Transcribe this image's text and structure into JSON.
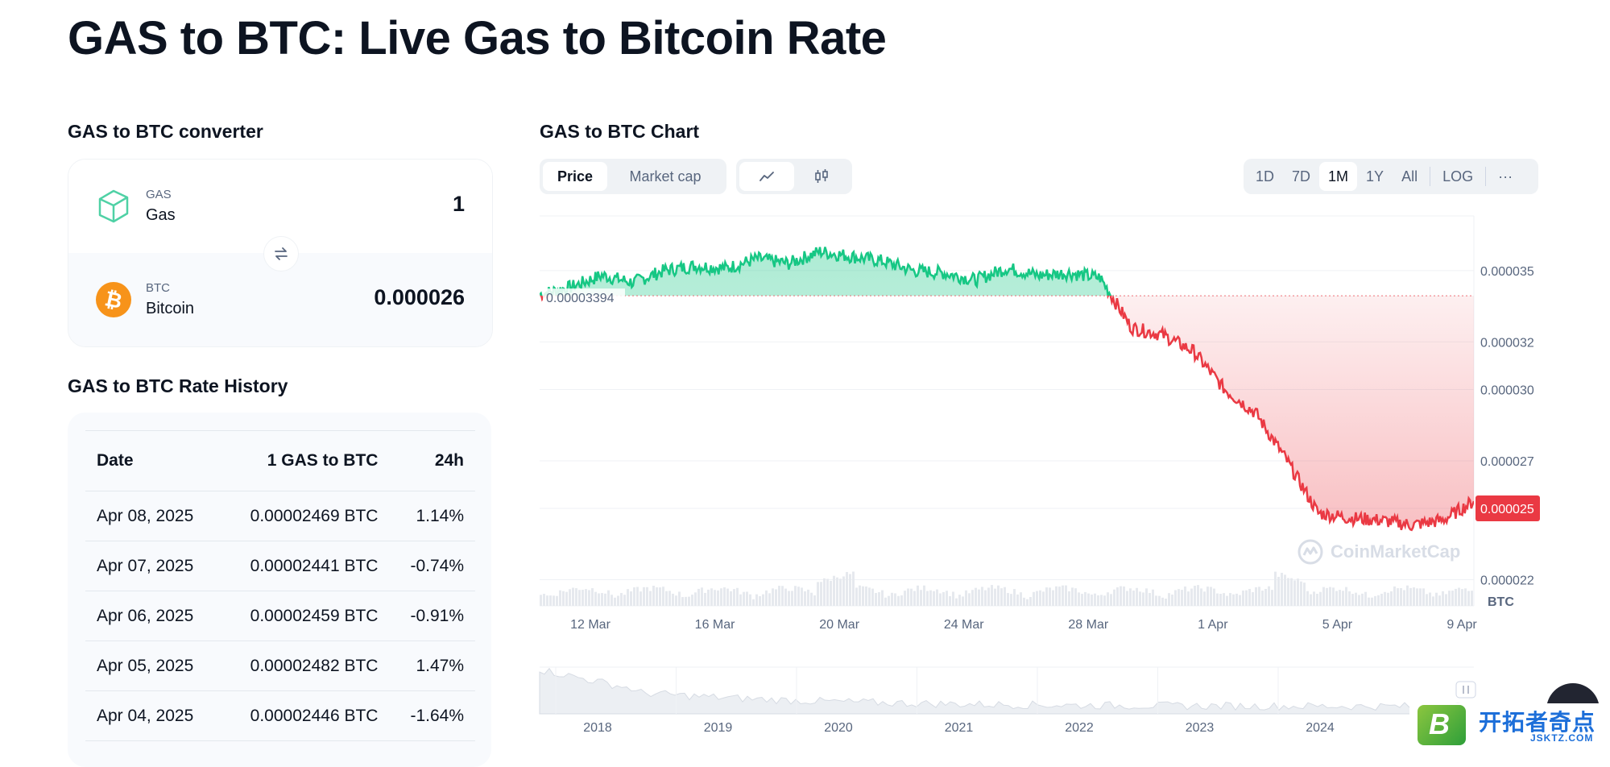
{
  "page": {
    "title": "GAS to BTC: Live Gas to Bitcoin Rate"
  },
  "converter": {
    "title": "GAS to BTC converter",
    "from": {
      "symbol": "GAS",
      "name": "Gas",
      "value": "1",
      "icon": "gas-cube-icon"
    },
    "to": {
      "symbol": "BTC",
      "name": "Bitcoin",
      "value": "0.000026",
      "icon": "bitcoin-icon"
    },
    "swap_icon": "swap-icon"
  },
  "history": {
    "title": "GAS to BTC Rate History",
    "columns": [
      "Date",
      "1 GAS to BTC",
      "24h"
    ],
    "rows": [
      [
        "Apr 08, 2025",
        "0.00002469 BTC",
        "1.14%"
      ],
      [
        "Apr 07, 2025",
        "0.00002441 BTC",
        "-0.74%"
      ],
      [
        "Apr 06, 2025",
        "0.00002459 BTC",
        "-0.91%"
      ],
      [
        "Apr 05, 2025",
        "0.00002482 BTC",
        "1.47%"
      ],
      [
        "Apr 04, 2025",
        "0.00002446 BTC",
        "-1.64%"
      ]
    ]
  },
  "chart": {
    "title": "GAS to BTC Chart",
    "view_tabs": [
      {
        "label": "Price",
        "active": true
      },
      {
        "label": "Market cap",
        "active": false
      }
    ],
    "type_icons": [
      "line-chart-icon",
      "candlestick-icon"
    ],
    "ranges": [
      "1D",
      "7D",
      "1M",
      "1Y",
      "All"
    ],
    "active_range": "1M",
    "log_label": "LOG",
    "more_label": "···",
    "reference_label": "0.00003394",
    "current_price_label": "0.000025",
    "unit_label": "BTC",
    "watermark": "CoinMarketCap"
  },
  "chart_data": {
    "type": "line",
    "currency": "BTC",
    "x_ticks": [
      "12 Mar",
      "16 Mar",
      "20 Mar",
      "24 Mar",
      "28 Mar",
      "1 Apr",
      "5 Apr",
      "9 Apr"
    ],
    "y_ticks": [
      "0.000035",
      "0.000032",
      "0.000030",
      "0.000027",
      "0.000025",
      "0.000022"
    ],
    "ylim": [
      2.09e-05,
      3.73e-05
    ],
    "reference_value": 3.394e-05,
    "current_value": 2.5e-05,
    "color_above": "#16c784",
    "color_below": "#ea3943",
    "series": [
      {
        "x": [
          "Mar 10",
          "Mar 11",
          "Mar 12",
          "Mar 13",
          "Mar 14",
          "Mar 15",
          "Mar 16",
          "Mar 17",
          "Mar 18",
          "Mar 19",
          "Mar 20",
          "Mar 21",
          "Mar 22",
          "Mar 23",
          "Mar 24",
          "Mar 25",
          "Mar 26",
          "Mar 27",
          "Mar 28",
          "Mar 29",
          "Mar 30",
          "Mar 31",
          "Apr 01",
          "Apr 02",
          "Apr 03",
          "Apr 04",
          "Apr 05",
          "Apr 06",
          "Apr 07",
          "Apr 08",
          "Apr 09"
        ],
        "values": [
          3.4e-05,
          3.43e-05,
          3.48e-05,
          3.45e-05,
          3.5e-05,
          3.52e-05,
          3.51e-05,
          3.55e-05,
          3.53e-05,
          3.58e-05,
          3.56e-05,
          3.54e-05,
          3.5e-05,
          3.49e-05,
          3.46e-05,
          3.51e-05,
          3.48e-05,
          3.49e-05,
          3.47e-05,
          3.26e-05,
          3.23e-05,
          3.16e-05,
          3e-05,
          2.9e-05,
          2.7e-05,
          2.48e-05,
          2.46e-05,
          2.45e-05,
          2.43e-05,
          2.45e-05,
          2.53e-05
        ]
      }
    ],
    "navigator": {
      "x_ticks": [
        "2018",
        "2019",
        "2020",
        "2021",
        "2022",
        "2023",
        "2024"
      ]
    }
  }
}
